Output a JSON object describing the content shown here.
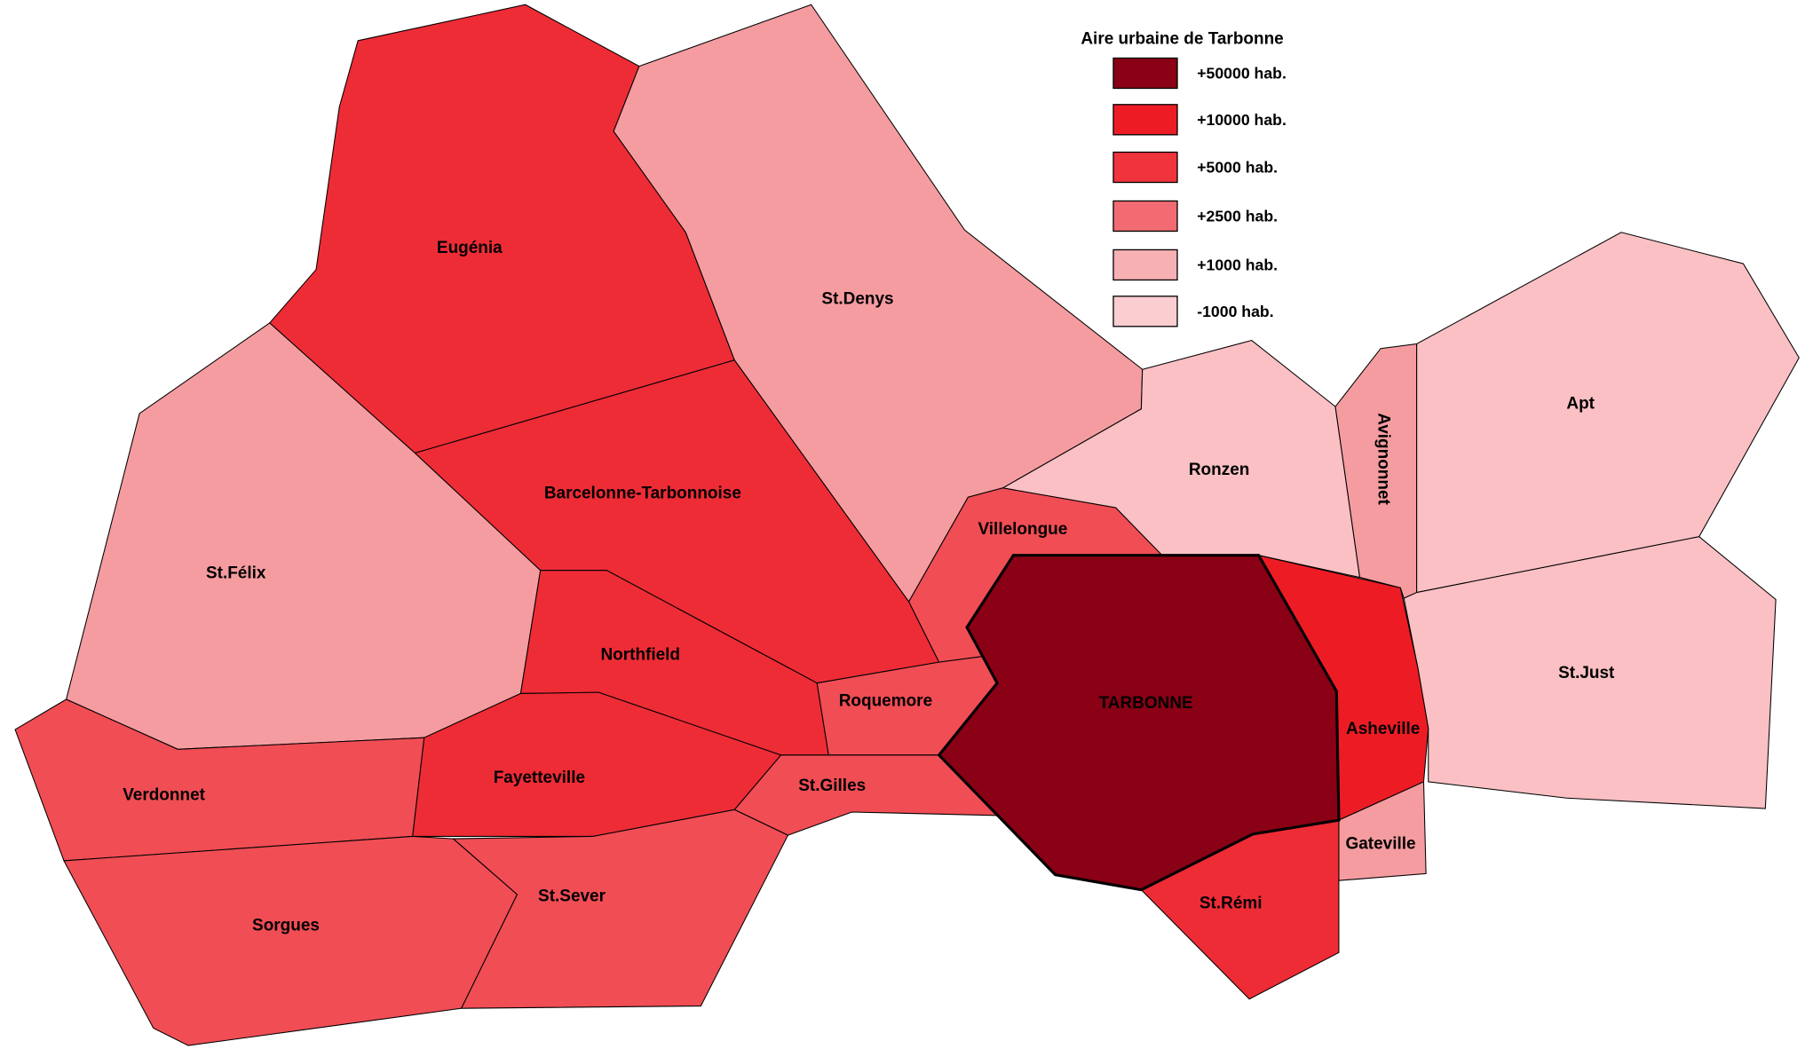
{
  "legend": {
    "title": "Aire urbaine de Tarbonne",
    "items": [
      {
        "label": "+50000 hab.",
        "color": "#8A0015"
      },
      {
        "label": "+10000 hab.",
        "color": "#ED1C24"
      },
      {
        "label": "+5000 hab.",
        "color": "#F0333D"
      },
      {
        "label": "+2500 hab.",
        "color": "#F26B72"
      },
      {
        "label": "+1000 hab.",
        "color": "#F7B0B3"
      },
      {
        "label": "-1000 hab.",
        "color": "#FACDD0"
      }
    ]
  },
  "map_colors": {
    "c50000": "#8A0015",
    "c10000": "#ED1C24",
    "c5000": "#EE2C36",
    "c2500": "#F04D55",
    "c1000": "#F59CA0",
    "cless": "#FAC0C4"
  },
  "regions": {
    "eugenia": "Eugénia",
    "st_denys": "St.Denys",
    "barcelonne": "Barcelonne-Tarbonnoise",
    "st_felix": "St.Félix",
    "northfield": "Northfield",
    "villelongue": "Villelongue",
    "roquemore": "Roquemore",
    "tarbonne": "TARBONNE",
    "asheville": "Asheville",
    "gateville": "Gateville",
    "st_remi": "St.Rémi",
    "ronzen": "Ronzen",
    "avignonnet": "Avignonnet",
    "apt": "Apt",
    "st_just": "St.Just",
    "verdonnet": "Verdonnet",
    "fayetteville": "Fayetteville",
    "st_gilles": "St.Gilles",
    "sorgues": "Sorgues",
    "st_sever": "St.Sever"
  }
}
